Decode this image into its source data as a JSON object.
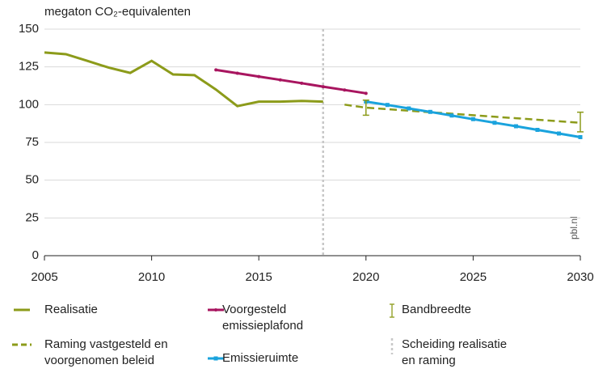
{
  "chart_data": {
    "type": "line",
    "y_label": "megaton CO₂-equivalenten",
    "source": "pbl.nl",
    "xlim": [
      2005,
      2030
    ],
    "xticks": [
      2005,
      2010,
      2015,
      2020,
      2025,
      2030
    ],
    "ylim": [
      0,
      150
    ],
    "yticks": [
      0,
      25,
      50,
      75,
      100,
      125,
      150
    ],
    "grid": true,
    "series": [
      {
        "name": "Realisatie",
        "color": "#8c9b1a",
        "style": "solid",
        "marker": "none",
        "x": [
          2005,
          2006,
          2007,
          2008,
          2009,
          2010,
          2011,
          2012,
          2013,
          2014,
          2015,
          2016,
          2017,
          2018
        ],
        "values": [
          134.5,
          133.4,
          129,
          124.5,
          121,
          129,
          120,
          119.5,
          110,
          99,
          102,
          102,
          102.5,
          102
        ]
      },
      {
        "name": "Raming vastgesteld en voorgenomen beleid",
        "color": "#8c9b1a",
        "style": "dashed",
        "marker": "none",
        "x": [
          2019,
          2020,
          2021,
          2022,
          2023,
          2024,
          2025,
          2026,
          2027,
          2028,
          2029,
          2030
        ],
        "values": [
          100,
          98,
          97,
          96,
          95,
          94,
          93,
          92,
          91,
          90,
          89,
          88
        ]
      },
      {
        "name": "Voorgesteld emissieplafond",
        "color": "#a8155f",
        "style": "solid",
        "marker": "dot",
        "x": [
          2013,
          2014,
          2015,
          2016,
          2017,
          2018,
          2019,
          2020
        ],
        "values": [
          123,
          120.8,
          118.6,
          116.4,
          114.2,
          111.9,
          109.7,
          107.5
        ]
      },
      {
        "name": "Emissieruimte",
        "color": "#1aa3dd",
        "style": "solid",
        "marker": "square",
        "x": [
          2020,
          2021,
          2022,
          2023,
          2024,
          2025,
          2026,
          2027,
          2028,
          2029,
          2030
        ],
        "values": [
          102,
          99.8,
          97.5,
          95.2,
          92.8,
          90.4,
          88,
          85.7,
          83.3,
          80.9,
          78.5
        ]
      }
    ],
    "band": {
      "name": "Bandbreedte",
      "color": "#8c9b1a",
      "x": [
        2020,
        2030
      ],
      "low": [
        93,
        82
      ],
      "high": [
        103,
        95
      ]
    },
    "separator": {
      "name": "Scheiding realisatie en raming",
      "color": "#c8c8c8",
      "x": 2018
    }
  }
}
